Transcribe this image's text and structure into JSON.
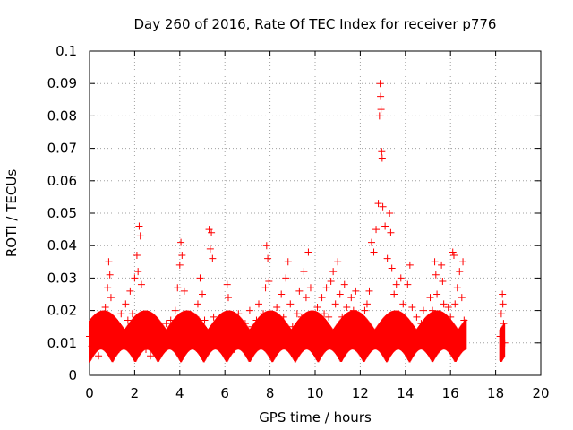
{
  "chart_data": {
    "type": "scatter",
    "title": "Day 260 of 2016, Rate Of TEC Index for receiver p776",
    "xlabel": "GPS time / hours",
    "ylabel": "ROTI / TECUs",
    "xlim": [
      0,
      20
    ],
    "ylim": [
      0,
      0.1
    ],
    "xticks": [
      0,
      2,
      4,
      6,
      8,
      10,
      12,
      14,
      16,
      18,
      20
    ],
    "xtick_labels": [
      "0",
      "2",
      "4",
      "6",
      "8",
      "10",
      "12",
      "14",
      "16",
      "18",
      "20"
    ],
    "yticks": [
      0,
      0.01,
      0.02,
      0.03,
      0.04,
      0.05,
      0.06,
      0.07,
      0.08,
      0.09,
      0.1
    ],
    "ytick_labels": [
      "0",
      "0.01",
      "0.02",
      "0.03",
      "0.04",
      "0.05",
      "0.06",
      "0.07",
      "0.08",
      "0.09",
      "0.1"
    ],
    "grid": true,
    "marker": "+",
    "series_color": "#ff0000",
    "series": [
      {
        "name": "ROTI",
        "points": [
          [
            0.0,
            0.012
          ],
          [
            0.1,
            0.009
          ],
          [
            0.2,
            0.015
          ],
          [
            0.3,
            0.011
          ],
          [
            0.4,
            0.006
          ],
          [
            0.5,
            0.013
          ],
          [
            0.6,
            0.018
          ],
          [
            0.7,
            0.021
          ],
          [
            0.8,
            0.027
          ],
          [
            0.85,
            0.035
          ],
          [
            0.9,
            0.031
          ],
          [
            0.95,
            0.024
          ],
          [
            1.0,
            0.014
          ],
          [
            1.1,
            0.01
          ],
          [
            1.2,
            0.016
          ],
          [
            1.3,
            0.008
          ],
          [
            1.4,
            0.019
          ],
          [
            1.5,
            0.012
          ],
          [
            1.6,
            0.022
          ],
          [
            1.7,
            0.017
          ],
          [
            1.8,
            0.026
          ],
          [
            1.9,
            0.019
          ],
          [
            2.0,
            0.03
          ],
          [
            2.1,
            0.037
          ],
          [
            2.15,
            0.032
          ],
          [
            2.2,
            0.046
          ],
          [
            2.25,
            0.043
          ],
          [
            2.3,
            0.028
          ],
          [
            2.4,
            0.012
          ],
          [
            2.5,
            0.008
          ],
          [
            2.6,
            0.01
          ],
          [
            2.7,
            0.006
          ],
          [
            2.8,
            0.013
          ],
          [
            2.9,
            0.011
          ],
          [
            3.0,
            0.008
          ],
          [
            3.1,
            0.014
          ],
          [
            3.2,
            0.012
          ],
          [
            3.3,
            0.009
          ],
          [
            3.4,
            0.016
          ],
          [
            3.5,
            0.011
          ],
          [
            3.6,
            0.017
          ],
          [
            3.7,
            0.013
          ],
          [
            3.8,
            0.02
          ],
          [
            3.9,
            0.027
          ],
          [
            4.0,
            0.034
          ],
          [
            4.05,
            0.041
          ],
          [
            4.1,
            0.037
          ],
          [
            4.2,
            0.026
          ],
          [
            4.3,
            0.016
          ],
          [
            4.4,
            0.013
          ],
          [
            4.5,
            0.009
          ],
          [
            4.6,
            0.015
          ],
          [
            4.7,
            0.018
          ],
          [
            4.8,
            0.022
          ],
          [
            4.9,
            0.03
          ],
          [
            5.0,
            0.025
          ],
          [
            5.1,
            0.017
          ],
          [
            5.2,
            0.013
          ],
          [
            5.3,
            0.045
          ],
          [
            5.35,
            0.039
          ],
          [
            5.4,
            0.044
          ],
          [
            5.45,
            0.036
          ],
          [
            5.5,
            0.018
          ],
          [
            5.6,
            0.011
          ],
          [
            5.7,
            0.014
          ],
          [
            5.8,
            0.009
          ],
          [
            5.9,
            0.012
          ],
          [
            6.0,
            0.015
          ],
          [
            6.1,
            0.028
          ],
          [
            6.15,
            0.024
          ],
          [
            6.2,
            0.017
          ],
          [
            6.3,
            0.012
          ],
          [
            6.4,
            0.008
          ],
          [
            6.5,
            0.013
          ],
          [
            6.6,
            0.019
          ],
          [
            6.7,
            0.014
          ],
          [
            6.8,
            0.011
          ],
          [
            6.9,
            0.016
          ],
          [
            7.0,
            0.013
          ],
          [
            7.1,
            0.02
          ],
          [
            7.2,
            0.015
          ],
          [
            7.3,
            0.011
          ],
          [
            7.4,
            0.017
          ],
          [
            7.5,
            0.022
          ],
          [
            7.6,
            0.012
          ],
          [
            7.7,
            0.019
          ],
          [
            7.8,
            0.027
          ],
          [
            7.85,
            0.04
          ],
          [
            7.9,
            0.036
          ],
          [
            7.95,
            0.029
          ],
          [
            8.0,
            0.018
          ],
          [
            8.1,
            0.011
          ],
          [
            8.2,
            0.013
          ],
          [
            8.3,
            0.021
          ],
          [
            8.4,
            0.016
          ],
          [
            8.5,
            0.025
          ],
          [
            8.6,
            0.018
          ],
          [
            8.7,
            0.03
          ],
          [
            8.8,
            0.035
          ],
          [
            8.9,
            0.022
          ],
          [
            9.0,
            0.015
          ],
          [
            9.1,
            0.012
          ],
          [
            9.2,
            0.019
          ],
          [
            9.3,
            0.026
          ],
          [
            9.4,
            0.018
          ],
          [
            9.5,
            0.032
          ],
          [
            9.6,
            0.024
          ],
          [
            9.7,
            0.038
          ],
          [
            9.8,
            0.027
          ],
          [
            9.9,
            0.017
          ],
          [
            10.0,
            0.013
          ],
          [
            10.1,
            0.021
          ],
          [
            10.2,
            0.016
          ],
          [
            10.3,
            0.024
          ],
          [
            10.4,
            0.019
          ],
          [
            10.5,
            0.027
          ],
          [
            10.6,
            0.018
          ],
          [
            10.7,
            0.029
          ],
          [
            10.8,
            0.032
          ],
          [
            10.9,
            0.022
          ],
          [
            11.0,
            0.035
          ],
          [
            11.1,
            0.025
          ],
          [
            11.2,
            0.018
          ],
          [
            11.3,
            0.028
          ],
          [
            11.4,
            0.021
          ],
          [
            11.5,
            0.015
          ],
          [
            11.6,
            0.024
          ],
          [
            11.7,
            0.02
          ],
          [
            11.8,
            0.026
          ],
          [
            11.9,
            0.017
          ],
          [
            12.0,
            0.013
          ],
          [
            12.1,
            0.011
          ],
          [
            12.2,
            0.02
          ],
          [
            12.3,
            0.022
          ],
          [
            12.4,
            0.026
          ],
          [
            12.5,
            0.041
          ],
          [
            12.6,
            0.038
          ],
          [
            12.7,
            0.045
          ],
          [
            12.8,
            0.053
          ],
          [
            12.85,
            0.08
          ],
          [
            12.88,
            0.09
          ],
          [
            12.9,
            0.086
          ],
          [
            12.92,
            0.082
          ],
          [
            12.95,
            0.069
          ],
          [
            12.97,
            0.067
          ],
          [
            13.0,
            0.052
          ],
          [
            13.1,
            0.046
          ],
          [
            13.2,
            0.036
          ],
          [
            13.3,
            0.05
          ],
          [
            13.35,
            0.044
          ],
          [
            13.4,
            0.033
          ],
          [
            13.5,
            0.025
          ],
          [
            13.6,
            0.028
          ],
          [
            13.7,
            0.019
          ],
          [
            13.8,
            0.03
          ],
          [
            13.9,
            0.022
          ],
          [
            14.0,
            0.016
          ],
          [
            14.1,
            0.028
          ],
          [
            14.2,
            0.034
          ],
          [
            14.3,
            0.021
          ],
          [
            14.4,
            0.014
          ],
          [
            14.5,
            0.018
          ],
          [
            14.6,
            0.012
          ],
          [
            14.7,
            0.016
          ],
          [
            14.8,
            0.02
          ],
          [
            14.9,
            0.015
          ],
          [
            15.0,
            0.011
          ],
          [
            15.1,
            0.024
          ],
          [
            15.2,
            0.02
          ],
          [
            15.3,
            0.035
          ],
          [
            15.35,
            0.031
          ],
          [
            15.4,
            0.025
          ],
          [
            15.5,
            0.019
          ],
          [
            15.6,
            0.034
          ],
          [
            15.65,
            0.029
          ],
          [
            15.7,
            0.022
          ],
          [
            15.8,
            0.016
          ],
          [
            15.9,
            0.021
          ],
          [
            16.0,
            0.018
          ],
          [
            16.1,
            0.038
          ],
          [
            16.15,
            0.037
          ],
          [
            16.2,
            0.022
          ],
          [
            16.3,
            0.027
          ],
          [
            16.4,
            0.032
          ],
          [
            16.5,
            0.024
          ],
          [
            16.55,
            0.035
          ],
          [
            16.6,
            0.017
          ],
          [
            18.2,
            0.012
          ],
          [
            18.25,
            0.019
          ],
          [
            18.3,
            0.025
          ],
          [
            18.32,
            0.022
          ],
          [
            18.35,
            0.016
          ],
          [
            18.4,
            0.01
          ]
        ]
      }
    ]
  }
}
